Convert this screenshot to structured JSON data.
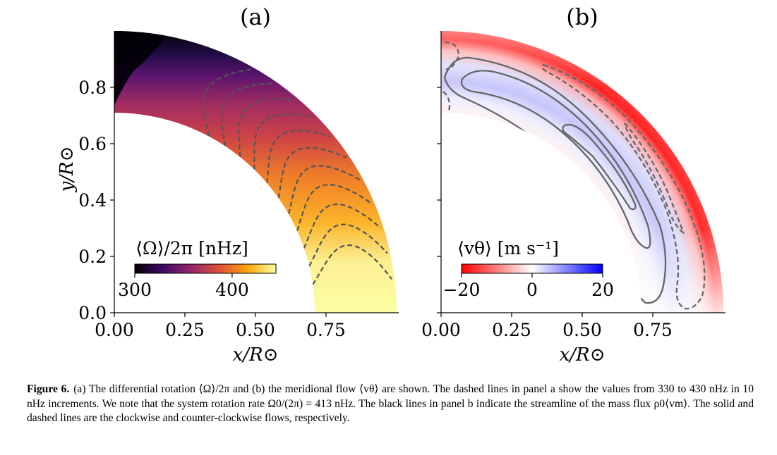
{
  "figure": {
    "caption_label": "Figure 6.",
    "caption_text": "(a) The differential rotation ⟨Ω⟩/2π and (b) the meridional flow ⟨vθ⟩ are shown. The dashed lines in panel a show the values from 330 to 430 nHz in 10 nHz increments. We note that the system rotation rate Ω0/(2π) = 413 nHz. The black lines in panel b indicate the streamline of the mass flux ρ0⟨vm⟩. The solid and dashed lines are the clockwise and counter-clockwise flows, respectively."
  },
  "chart_data": [
    {
      "type": "heatmap",
      "panel_label": "(a)",
      "xlabel": "x/R⊙",
      "ylabel": "y/R⊙",
      "x_ticks": [
        "0.00",
        "0.25",
        "0.50",
        "0.75"
      ],
      "y_ticks": [
        "0.0",
        "0.2",
        "0.4",
        "0.6",
        "0.8"
      ],
      "xlim": [
        0.0,
        1.0
      ],
      "ylim": [
        0.0,
        1.0
      ],
      "domain": {
        "r_inner": 0.71,
        "r_outer": 0.99,
        "theta_min_deg": 0,
        "theta_max_deg": 90
      },
      "colorbar": {
        "label": "⟨Ω⟩/2π [nHz]",
        "ticks": [
          "300",
          "400"
        ],
        "range": [
          300,
          445
        ],
        "colormap": "inferno",
        "colors": [
          "#000004",
          "#420a68",
          "#932667",
          "#dd513a",
          "#fca50a",
          "#fcffa4"
        ]
      },
      "contours_nHz": [
        330,
        340,
        350,
        360,
        370,
        380,
        390,
        400,
        410,
        420,
        430
      ],
      "contour_style": "dashed"
    },
    {
      "type": "heatmap",
      "panel_label": "(b)",
      "xlabel": "x/R⊙",
      "ylabel": "",
      "x_ticks": [
        "0.00",
        "0.25",
        "0.50",
        "0.75"
      ],
      "xlim": [
        0.0,
        1.0
      ],
      "ylim": [
        0.0,
        1.0
      ],
      "domain": {
        "r_inner": 0.71,
        "r_outer": 0.99,
        "theta_min_deg": 0,
        "theta_max_deg": 90
      },
      "colorbar": {
        "label": "⟨vθ⟩ [m s⁻¹]",
        "ticks": [
          "−20",
          "0",
          "20"
        ],
        "range": [
          -20,
          20
        ],
        "colormap": "bwr",
        "colors": [
          "#ff0000",
          "#ffffff",
          "#0000ff"
        ]
      },
      "streamlines": [
        {
          "direction": "clockwise",
          "style": "solid"
        },
        {
          "direction": "counter-clockwise",
          "style": "dashed"
        }
      ]
    }
  ]
}
